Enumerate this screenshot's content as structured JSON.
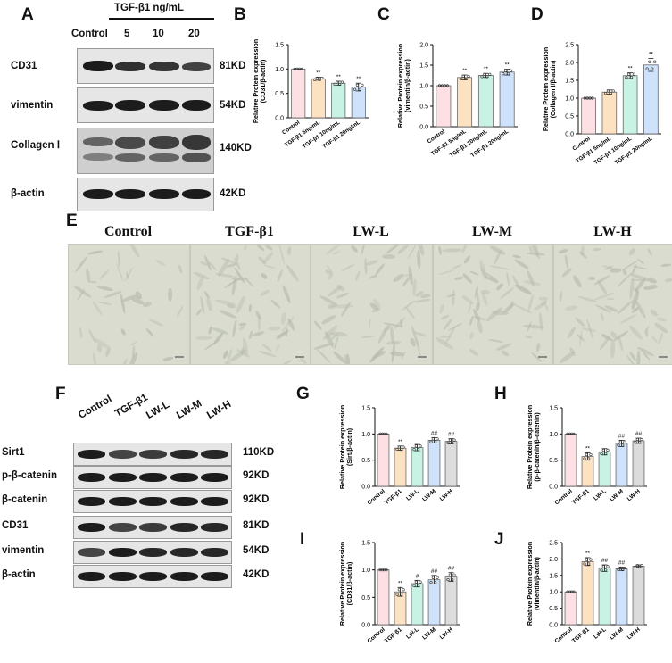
{
  "panels": {
    "A": "A",
    "B": "B",
    "C": "C",
    "D": "D",
    "E": "E",
    "F": "F",
    "G": "G",
    "H": "H",
    "I": "I",
    "J": "J"
  },
  "blotA": {
    "header": "TGF-β1 ng/mL",
    "lanes": [
      "Control",
      "5",
      "10",
      "20"
    ],
    "rows": [
      {
        "label": "CD31",
        "kd": "81KD"
      },
      {
        "label": "vimentin",
        "kd": "54KD"
      },
      {
        "label": "Collagen Ⅰ",
        "kd": "140KD"
      },
      {
        "label": "β-actin",
        "kd": "42KD"
      }
    ]
  },
  "blotF": {
    "lanes": [
      "Control",
      "TGF-β1",
      "LW-L",
      "LW-M",
      "LW-H"
    ],
    "rows": [
      {
        "label": "Sirt1",
        "kd": "110KD"
      },
      {
        "label": "p-β-catenin",
        "kd": "92KD"
      },
      {
        "label": "β-catenin",
        "kd": "92KD"
      },
      {
        "label": "CD31",
        "kd": "81KD"
      },
      {
        "label": "vimentin",
        "kd": "54KD"
      },
      {
        "label": "β-actin",
        "kd": "42KD"
      }
    ]
  },
  "micrographs": {
    "titles": [
      "Control",
      "TGF-β1",
      "LW-L",
      "LW-M",
      "LW-H"
    ]
  },
  "colors": [
    "#fde0e4",
    "#fde2c2",
    "#c8f2e4",
    "#cfe2fb"
  ],
  "colors5": [
    "#fde0e4",
    "#fde2c2",
    "#c8f2e4",
    "#cfe2fb",
    "#dcdcdc"
  ],
  "chart_data": [
    {
      "id": "B",
      "type": "bar",
      "ylabel": "Relative Protein expression (CD31/β-actin)",
      "categories": [
        "Control",
        "TGF-β1 5ng/mL",
        "TGF-β1 10ng/mL",
        "TGF-β1 20ng/mL"
      ],
      "values": [
        1.0,
        0.8,
        0.71,
        0.63
      ],
      "errors": [
        0.0,
        0.03,
        0.04,
        0.08
      ],
      "ylim": [
        0,
        1.5
      ],
      "yticks": [
        "0.0",
        "0.5",
        "1.0",
        "1.5"
      ],
      "marks": [
        "",
        "**",
        "**",
        "**"
      ]
    },
    {
      "id": "C",
      "type": "bar",
      "ylabel": "Relative Protein expression (vimentin/β-actin)",
      "categories": [
        "Control",
        "TGF-β1 5ng/mL",
        "TGF-β1 10ng/mL",
        "TGF-β1 20ng/mL"
      ],
      "values": [
        1.0,
        1.2,
        1.25,
        1.33
      ],
      "errors": [
        0.0,
        0.06,
        0.05,
        0.07
      ],
      "ylim": [
        0,
        2.0
      ],
      "yticks": [
        "0.0",
        "0.5",
        "1.0",
        "1.5",
        "2.0"
      ],
      "marks": [
        "",
        "**",
        "**",
        "**"
      ]
    },
    {
      "id": "D",
      "type": "bar",
      "ylabel": "Relative Protein expression (Collagen Ⅰ/β-actin)",
      "categories": [
        "Control",
        "TGF-β1 5ng/mL",
        "TGF-β1 10ng/mL",
        "TGF-β1 20ng/mL"
      ],
      "values": [
        1.0,
        1.17,
        1.63,
        1.93
      ],
      "errors": [
        0.0,
        0.06,
        0.08,
        0.18
      ],
      "ylim": [
        0,
        2.5
      ],
      "yticks": [
        "0.0",
        "0.5",
        "1.0",
        "1.5",
        "2.0",
        "2.5"
      ],
      "marks": [
        "",
        "",
        "**",
        "**"
      ]
    },
    {
      "id": "G",
      "type": "bar",
      "ylabel": "Relative Protein expression (Sirt/β-actin)",
      "categories": [
        "Control",
        "TGF-β1",
        "LW-L",
        "LW-M",
        "LW-H"
      ],
      "values": [
        1.0,
        0.73,
        0.74,
        0.88,
        0.86
      ],
      "errors": [
        0.0,
        0.04,
        0.06,
        0.05,
        0.05
      ],
      "ylim": [
        0,
        1.5
      ],
      "yticks": [
        "0.0",
        "0.5",
        "1.0",
        "1.5"
      ],
      "marks": [
        "",
        "**",
        "",
        "##",
        "##"
      ]
    },
    {
      "id": "H",
      "type": "bar",
      "ylabel": "Relative Protein expression (p-β-catenin/β-catenin)",
      "categories": [
        "Control",
        "TGF-β1",
        "LW-L",
        "LW-M",
        "LW-H"
      ],
      "values": [
        1.0,
        0.57,
        0.66,
        0.82,
        0.87
      ],
      "errors": [
        0.0,
        0.07,
        0.06,
        0.06,
        0.05
      ],
      "ylim": [
        0,
        1.5
      ],
      "yticks": [
        "0.0",
        "0.5",
        "1.0",
        "1.5"
      ],
      "marks": [
        "",
        "**",
        "",
        "##",
        "##"
      ]
    },
    {
      "id": "I",
      "type": "bar",
      "ylabel": "Relative Protein expression (CD31/β-actin)",
      "categories": [
        "Control",
        "TGF-β1",
        "LW-L",
        "LW-M",
        "LW-H"
      ],
      "values": [
        1.0,
        0.6,
        0.75,
        0.82,
        0.87
      ],
      "errors": [
        0.0,
        0.08,
        0.06,
        0.08,
        0.08
      ],
      "ylim": [
        0,
        1.5
      ],
      "yticks": [
        "0.0",
        "0.5",
        "1.0",
        "1.5"
      ],
      "marks": [
        "",
        "**",
        "#",
        "##",
        "##"
      ]
    },
    {
      "id": "J",
      "type": "bar",
      "ylabel": "Relative Protein expression (vimentin/β-actin)",
      "categories": [
        "Control",
        "TGF-β1",
        "LW-L",
        "LW-M",
        "LW-H"
      ],
      "values": [
        1.0,
        1.92,
        1.72,
        1.7,
        1.78
      ],
      "errors": [
        0.0,
        0.12,
        0.1,
        0.05,
        0.04
      ],
      "ylim": [
        0,
        2.5
      ],
      "yticks": [
        "0.0",
        "0.5",
        "1.0",
        "1.5",
        "2.0",
        "2.5"
      ],
      "marks": [
        "",
        "**",
        "##",
        "##",
        ""
      ]
    }
  ]
}
